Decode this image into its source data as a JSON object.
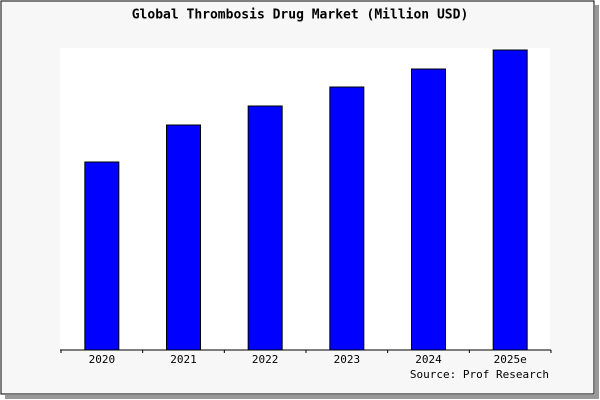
{
  "chart_data": {
    "type": "bar",
    "title": "Global Thrombosis Drug Market (Million USD)",
    "categories": [
      "2020",
      "2021",
      "2022",
      "2023",
      "2024",
      "2025e"
    ],
    "values": [
      188,
      225,
      244,
      263,
      281,
      300
    ],
    "color": "#0000ff",
    "ylim": [
      0,
      302
    ],
    "source": "Source: Prof Research"
  }
}
